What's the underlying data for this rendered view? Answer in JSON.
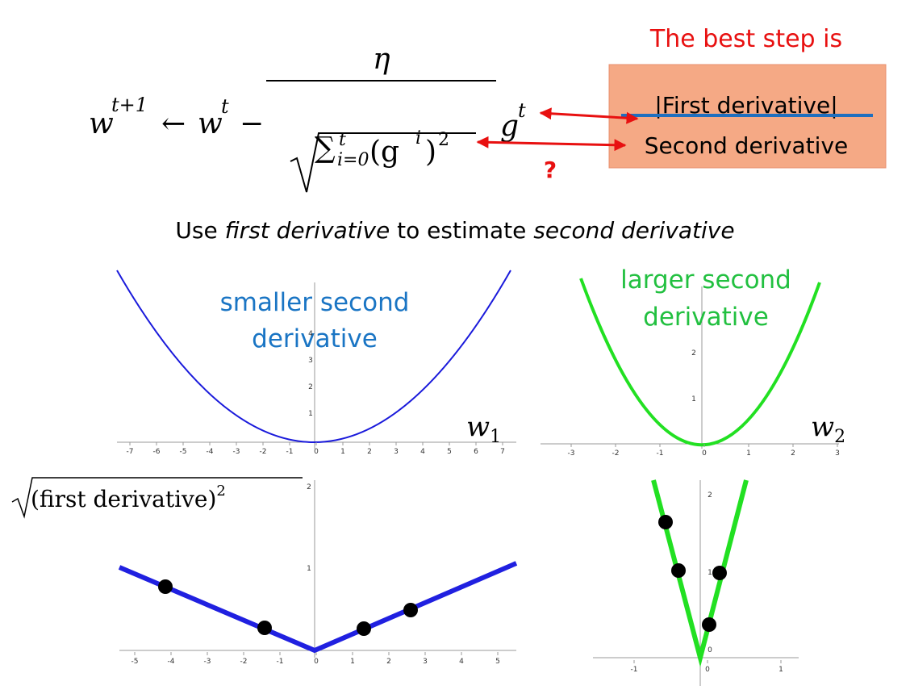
{
  "formula": {
    "lhs": "w",
    "lhs_sup": "t+1",
    "arrow": "←",
    "w": "w",
    "w_sup": "t",
    "minus": "−",
    "eta": "η",
    "g": "g",
    "g_sup": "t",
    "sum": "∑",
    "sum_sup": "t",
    "sum_sub": "i=0",
    "open": "(g",
    "g_i": "i",
    "close": ")",
    "square": "2"
  },
  "note": {
    "title": "The best step is",
    "numerator": "|First derivative|",
    "denominator": "Second derivative"
  },
  "question": "?",
  "subtitle": [
    "Use ",
    "first derivative",
    " to estimate ",
    "second derivative"
  ],
  "plots": [
    {
      "label": [
        "smaller second",
        "derivative"
      ],
      "var": "w",
      "sub": "1",
      "xticks": [
        -7,
        -6,
        -5,
        -4,
        -3,
        -2,
        -1,
        0,
        1,
        2,
        3,
        4,
        5,
        6,
        7
      ],
      "yticks": [
        1,
        2,
        3,
        4
      ]
    },
    {
      "label": [
        "larger second",
        "derivative"
      ],
      "var": "w",
      "sub": "2",
      "xticks": [
        -3,
        -2,
        -1,
        0,
        1,
        2,
        3
      ],
      "yticks": [
        1,
        2
      ]
    },
    {
      "xticks": [
        -5,
        -4,
        -3,
        -2,
        -1,
        0,
        1,
        2,
        3,
        4,
        5
      ],
      "yticks": [
        1,
        2
      ]
    },
    {
      "xticks": [
        -1,
        0,
        1
      ],
      "yticks": [
        0,
        1,
        2
      ]
    }
  ],
  "sqrt_label": {
    "text": "(first derivative)",
    "exponent": "2"
  }
}
